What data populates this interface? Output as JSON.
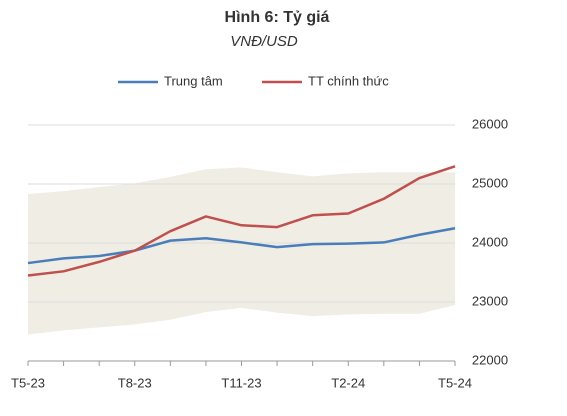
{
  "chart_data": {
    "type": "line",
    "title": "Hình 6: Tỷ giá",
    "subtitle": "VNĐ/USD",
    "categories": [
      "T5-23",
      null,
      null,
      "T8-23",
      null,
      null,
      "T11-23",
      null,
      null,
      "T2-24",
      null,
      null,
      "T5-24"
    ],
    "series": [
      {
        "name": "Trung tâm",
        "color": "#4a7ebb",
        "values": [
          23660,
          23740,
          23780,
          23870,
          24040,
          24080,
          24010,
          23930,
          23980,
          23990,
          24010,
          24140,
          24250
        ]
      },
      {
        "name": "TT chính thức",
        "color": "#c0504d",
        "values": [
          23450,
          23520,
          23680,
          23870,
          24200,
          24450,
          24300,
          24270,
          24470,
          24500,
          24750,
          25100,
          25300
        ]
      }
    ],
    "band": {
      "color": "#efede4",
      "lower": [
        22450,
        22520,
        22570,
        22620,
        22700,
        22830,
        22900,
        22820,
        22760,
        22790,
        22800,
        22800,
        22950
      ],
      "upper": [
        24830,
        24880,
        24950,
        25010,
        25120,
        25250,
        25280,
        25200,
        25130,
        25180,
        25200,
        25200,
        25200
      ]
    },
    "ylim": [
      22000,
      26000
    ],
    "yticks": [
      22000,
      23000,
      24000,
      25000,
      26000
    ],
    "grid": true
  }
}
